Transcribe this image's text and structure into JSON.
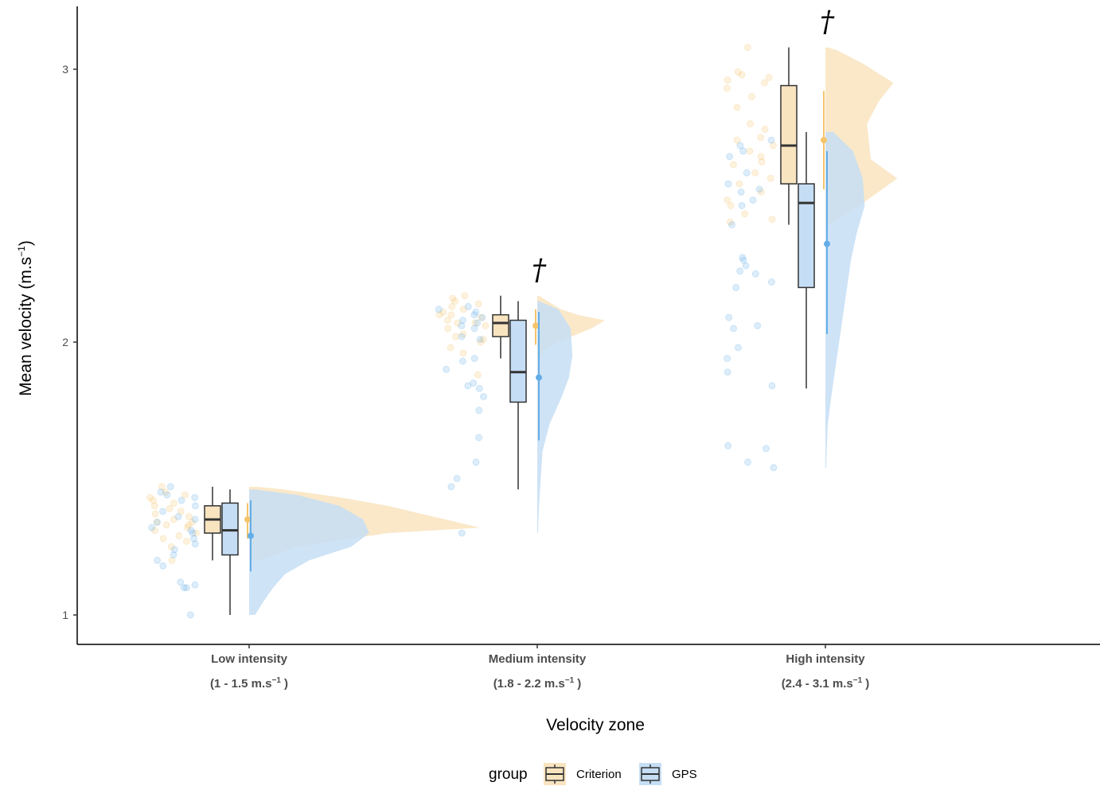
{
  "chart_data": {
    "type": "raincloud",
    "xlabel": "Velocity zone",
    "ylabel": "Mean velocity (m.s",
    "ylabel_sup": "−1",
    "ylabel_close": ")",
    "ylim": [
      0.9,
      3.23
    ],
    "yticks": [
      "1",
      "2",
      "3"
    ],
    "ytick_values": [
      1,
      2,
      3
    ],
    "legend": {
      "title": "group",
      "position": "bottom",
      "entries": [
        "Criterion",
        "GPS"
      ]
    },
    "colors": {
      "Criterion": "#f5c46b",
      "GPS": "#64aee8",
      "Criterion_fill": "#f9e4c0",
      "GPS_fill": "#c6def5"
    },
    "categories": [
      {
        "name": "Low intensity",
        "sub": "(1 - 1.5  m.s",
        "sub_sup": "−1",
        "sub_close": " )",
        "significance": ""
      },
      {
        "name": "Medium intensity",
        "sub": "(1.8 - 2.2  m.s",
        "sub_sup": "−1",
        "sub_close": " )",
        "significance": "†"
      },
      {
        "name": "High intensity",
        "sub": "(2.4 - 3.1  m.s",
        "sub_sup": "−1",
        "sub_close": " )",
        "significance": "†"
      }
    ],
    "series": [
      {
        "name": "Criterion",
        "boxes": [
          {
            "min": 1.2,
            "q1": 1.3,
            "median": 1.35,
            "q3": 1.4,
            "max": 1.47
          },
          {
            "min": 1.94,
            "q1": 2.02,
            "median": 2.07,
            "q3": 2.1,
            "max": 2.17
          },
          {
            "min": 2.43,
            "q1": 2.58,
            "median": 2.72,
            "q3": 2.94,
            "max": 3.08
          }
        ],
        "means": [
          {
            "mean": 1.35,
            "lo": 1.28,
            "hi": 1.41
          },
          {
            "mean": 2.06,
            "lo": 1.99,
            "hi": 2.12
          },
          {
            "mean": 2.74,
            "lo": 2.56,
            "hi": 2.92
          }
        ],
        "density_profiles": [
          [
            [
              1.2,
              0.05
            ],
            [
              1.25,
              0.2
            ],
            [
              1.3,
              0.6
            ],
            [
              1.32,
              1.0
            ],
            [
              1.35,
              0.85
            ],
            [
              1.38,
              0.7
            ],
            [
              1.4,
              0.6
            ],
            [
              1.43,
              0.4
            ],
            [
              1.46,
              0.15
            ],
            [
              1.47,
              0.03
            ]
          ],
          [
            [
              1.94,
              0.05
            ],
            [
              1.97,
              0.1
            ],
            [
              2.0,
              0.3
            ],
            [
              2.05,
              0.8
            ],
            [
              2.08,
              1.0
            ],
            [
              2.1,
              0.6
            ],
            [
              2.12,
              0.35
            ],
            [
              2.15,
              0.15
            ],
            [
              2.17,
              0.03
            ]
          ],
          [
            [
              2.43,
              0.05
            ],
            [
              2.5,
              0.45
            ],
            [
              2.6,
              0.95
            ],
            [
              2.67,
              0.6
            ],
            [
              2.8,
              0.55
            ],
            [
              2.88,
              0.7
            ],
            [
              2.95,
              0.9
            ],
            [
              3.02,
              0.5
            ],
            [
              3.07,
              0.15
            ],
            [
              3.08,
              0.03
            ]
          ]
        ],
        "points": [
          [
            1.44,
            1.42,
            1.39,
            1.36,
            1.34,
            1.33,
            1.31,
            1.3,
            1.28,
            1.27,
            1.43,
            1.47,
            1.38,
            1.35,
            1.4,
            1.33,
            1.29,
            1.25,
            1.2,
            1.37,
            1.32,
            1.34,
            1.45,
            1.41
          ],
          [
            2.17,
            2.15,
            2.13,
            2.12,
            2.11,
            2.1,
            2.09,
            2.08,
            2.07,
            2.06,
            2.05,
            2.03,
            2.01,
            2.0,
            1.98,
            1.96,
            1.88,
            2.16,
            2.14,
            2.1,
            2.07,
            2.02
          ],
          [
            3.08,
            2.98,
            2.97,
            2.96,
            2.95,
            2.93,
            2.9,
            2.86,
            2.8,
            2.78,
            2.75,
            2.72,
            2.7,
            2.68,
            2.65,
            2.62,
            2.6,
            2.58,
            2.55,
            2.52,
            2.5,
            2.47,
            2.45,
            2.44,
            2.99,
            2.74,
            2.66
          ]
        ]
      },
      {
        "name": "GPS",
        "boxes": [
          {
            "min": 1.0,
            "q1": 1.22,
            "median": 1.31,
            "q3": 1.41,
            "max": 1.46
          },
          {
            "min": 1.46,
            "q1": 1.78,
            "median": 1.89,
            "q3": 2.08,
            "max": 2.15
          },
          {
            "min": 1.83,
            "q1": 2.2,
            "median": 2.51,
            "q3": 2.58,
            "max": 2.77
          }
        ],
        "means": [
          {
            "mean": 1.29,
            "lo": 1.16,
            "hi": 1.42
          },
          {
            "mean": 1.87,
            "lo": 1.64,
            "hi": 2.11
          },
          {
            "mean": 2.36,
            "lo": 2.03,
            "hi": 2.7
          }
        ],
        "density_profiles": [
          [
            [
              1.0,
              0.05
            ],
            [
              1.05,
              0.12
            ],
            [
              1.1,
              0.2
            ],
            [
              1.15,
              0.3
            ],
            [
              1.2,
              0.5
            ],
            [
              1.25,
              0.85
            ],
            [
              1.3,
              1.0
            ],
            [
              1.35,
              0.95
            ],
            [
              1.4,
              0.75
            ],
            [
              1.44,
              0.4
            ],
            [
              1.46,
              0.05
            ]
          ],
          [
            [
              1.3,
              0.02
            ],
            [
              1.4,
              0.05
            ],
            [
              1.5,
              0.1
            ],
            [
              1.6,
              0.15
            ],
            [
              1.7,
              0.35
            ],
            [
              1.8,
              0.7
            ],
            [
              1.87,
              0.9
            ],
            [
              1.95,
              1.0
            ],
            [
              2.05,
              0.95
            ],
            [
              2.12,
              0.6
            ],
            [
              2.15,
              0.05
            ]
          ],
          [
            [
              1.54,
              0.02
            ],
            [
              1.6,
              0.03
            ],
            [
              1.7,
              0.06
            ],
            [
              1.8,
              0.15
            ],
            [
              1.9,
              0.25
            ],
            [
              2.0,
              0.35
            ],
            [
              2.1,
              0.45
            ],
            [
              2.2,
              0.55
            ],
            [
              2.3,
              0.65
            ],
            [
              2.4,
              0.8
            ],
            [
              2.5,
              1.0
            ],
            [
              2.6,
              0.95
            ],
            [
              2.7,
              0.7
            ],
            [
              2.77,
              0.2
            ]
          ]
        ],
        "points": [
          [
            1.47,
            1.45,
            1.44,
            1.43,
            1.4,
            1.38,
            1.36,
            1.34,
            1.32,
            1.3,
            1.28,
            1.26,
            1.24,
            1.22,
            1.2,
            1.18,
            1.12,
            1.1,
            1.1,
            1.11,
            1.0,
            1.42,
            1.35,
            1.31
          ],
          [
            2.13,
            2.12,
            2.11,
            2.1,
            2.09,
            2.07,
            2.06,
            2.05,
            2.02,
            2.01,
            1.94,
            1.93,
            1.9,
            1.85,
            1.84,
            1.83,
            1.8,
            1.75,
            1.65,
            1.56,
            1.5,
            1.47,
            1.3,
            2.08
          ],
          [
            2.74,
            2.72,
            2.7,
            2.68,
            2.62,
            2.58,
            2.56,
            2.55,
            2.52,
            2.5,
            2.43,
            2.31,
            2.3,
            2.28,
            2.26,
            2.25,
            2.22,
            2.2,
            2.09,
            2.06,
            2.05,
            1.98,
            1.94,
            1.89,
            1.84,
            1.62,
            1.61,
            1.56,
            1.54
          ]
        ]
      }
    ]
  }
}
